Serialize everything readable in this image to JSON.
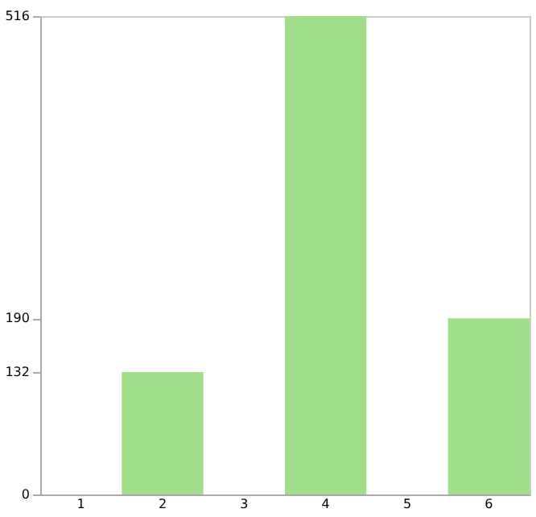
{
  "chart_data": {
    "type": "bar",
    "categories": [
      "1",
      "2",
      "3",
      "4",
      "5",
      "6"
    ],
    "values": [
      0,
      132,
      0,
      516,
      0,
      190
    ],
    "color": "#a0de8a",
    "ylim": [
      0,
      516
    ],
    "yticks": [
      0,
      132,
      190,
      516
    ],
    "grid": false
  }
}
